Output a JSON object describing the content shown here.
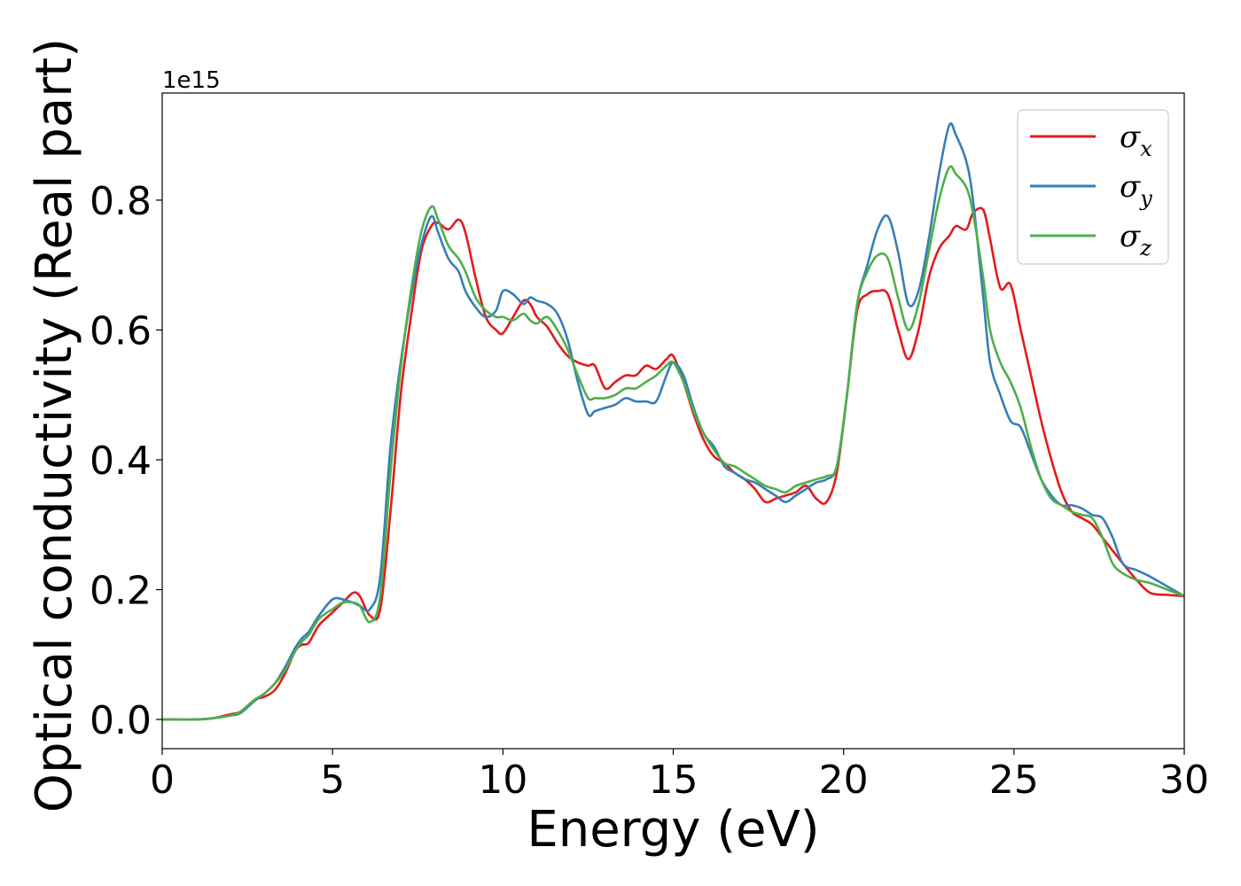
{
  "chart_data": {
    "type": "line",
    "xlabel": "Energy (eV)",
    "ylabel": "Optical conductivity (Real part)",
    "y_offset_label": "1e15",
    "xlim": [
      0,
      30
    ],
    "ylim": [
      -0.045,
      0.965
    ],
    "xticks": [
      0,
      5,
      10,
      15,
      20,
      25,
      30
    ],
    "xtick_labels": [
      "0",
      "5",
      "10",
      "15",
      "20",
      "25",
      "30"
    ],
    "yticks": [
      0.0,
      0.2,
      0.4,
      0.6,
      0.8
    ],
    "ytick_labels": [
      "0.0",
      "0.2",
      "0.4",
      "0.6",
      "0.8"
    ],
    "grid": false,
    "legend_position": "top-right",
    "series": [
      {
        "name": "σx",
        "legend_symbol": "σ",
        "legend_subscript": "x",
        "color": "#e41a1c",
        "x": [
          0,
          1,
          1.5,
          2,
          2.3,
          2.7,
          3,
          3.3,
          3.6,
          3.9,
          4.1,
          4.3,
          4.6,
          5,
          5.3,
          5.6,
          5.8,
          6.1,
          6.4,
          6.7,
          7,
          7.3,
          7.6,
          7.9,
          8.1,
          8.4,
          8.7,
          8.9,
          9.2,
          9.5,
          9.8,
          10,
          10.3,
          10.6,
          10.8,
          11,
          11.3,
          11.6,
          11.9,
          12.2,
          12.5,
          12.7,
          13,
          13.3,
          13.6,
          13.9,
          14.2,
          14.5,
          14.8,
          15,
          15.3,
          15.6,
          15.9,
          16.2,
          16.5,
          16.8,
          17.1,
          17.4,
          17.7,
          18,
          18.3,
          18.6,
          18.9,
          19.2,
          19.5,
          19.8,
          20.1,
          20.4,
          20.7,
          21,
          21.3,
          21.6,
          21.9,
          22.2,
          22.5,
          22.8,
          23.1,
          23.3,
          23.6,
          23.8,
          24.1,
          24.3,
          24.6,
          24.9,
          25.2,
          25.5,
          25.8,
          26.1,
          26.4,
          26.7,
          27,
          27.3,
          27.6,
          27.9,
          28.2,
          28.6,
          29,
          29.5,
          30
        ],
        "y": [
          0.0,
          0.0,
          0.002,
          0.008,
          0.012,
          0.03,
          0.035,
          0.045,
          0.07,
          0.105,
          0.115,
          0.118,
          0.145,
          0.165,
          0.18,
          0.195,
          0.19,
          0.16,
          0.17,
          0.32,
          0.5,
          0.62,
          0.72,
          0.76,
          0.765,
          0.755,
          0.77,
          0.75,
          0.68,
          0.62,
          0.6,
          0.595,
          0.62,
          0.645,
          0.64,
          0.62,
          0.605,
          0.58,
          0.56,
          0.55,
          0.545,
          0.545,
          0.51,
          0.52,
          0.53,
          0.53,
          0.545,
          0.54,
          0.555,
          0.56,
          0.52,
          0.47,
          0.43,
          0.405,
          0.395,
          0.38,
          0.37,
          0.355,
          0.335,
          0.34,
          0.345,
          0.35,
          0.36,
          0.34,
          0.335,
          0.38,
          0.5,
          0.63,
          0.655,
          0.66,
          0.655,
          0.6,
          0.555,
          0.6,
          0.68,
          0.725,
          0.745,
          0.76,
          0.755,
          0.78,
          0.785,
          0.74,
          0.665,
          0.67,
          0.6,
          0.53,
          0.46,
          0.4,
          0.35,
          0.32,
          0.31,
          0.3,
          0.28,
          0.26,
          0.24,
          0.215,
          0.195,
          0.192,
          0.19
        ]
      },
      {
        "name": "σy",
        "legend_symbol": "σ",
        "legend_subscript": "y",
        "color": "#377eb8",
        "x": [
          0,
          1,
          1.5,
          2,
          2.3,
          2.7,
          3,
          3.3,
          3.6,
          3.9,
          4.1,
          4.3,
          4.6,
          5,
          5.3,
          5.6,
          5.8,
          6.1,
          6.4,
          6.7,
          7,
          7.3,
          7.6,
          7.9,
          8.1,
          8.4,
          8.7,
          8.9,
          9.2,
          9.5,
          9.8,
          10,
          10.3,
          10.6,
          10.8,
          11,
          11.3,
          11.6,
          11.9,
          12.2,
          12.5,
          12.7,
          13,
          13.3,
          13.6,
          13.9,
          14.2,
          14.5,
          14.8,
          15,
          15.3,
          15.6,
          15.9,
          16.2,
          16.5,
          16.8,
          17.1,
          17.4,
          17.7,
          18,
          18.3,
          18.6,
          18.9,
          19.2,
          19.5,
          19.8,
          20.1,
          20.4,
          20.7,
          21,
          21.3,
          21.6,
          21.9,
          22.2,
          22.5,
          22.8,
          23.1,
          23.3,
          23.6,
          23.8,
          24.1,
          24.3,
          24.6,
          24.9,
          25.2,
          25.5,
          25.8,
          26.1,
          26.4,
          26.7,
          27,
          27.3,
          27.6,
          27.9,
          28.2,
          28.6,
          29,
          29.5,
          30
        ],
        "y": [
          0.0,
          0.0,
          0.002,
          0.006,
          0.01,
          0.028,
          0.04,
          0.055,
          0.08,
          0.11,
          0.125,
          0.135,
          0.16,
          0.185,
          0.185,
          0.18,
          0.175,
          0.17,
          0.22,
          0.42,
          0.55,
          0.65,
          0.73,
          0.775,
          0.75,
          0.71,
          0.69,
          0.66,
          0.635,
          0.62,
          0.63,
          0.66,
          0.655,
          0.64,
          0.65,
          0.645,
          0.64,
          0.625,
          0.585,
          0.52,
          0.47,
          0.475,
          0.48,
          0.485,
          0.495,
          0.49,
          0.49,
          0.49,
          0.53,
          0.55,
          0.53,
          0.48,
          0.44,
          0.42,
          0.39,
          0.38,
          0.37,
          0.365,
          0.355,
          0.345,
          0.335,
          0.345,
          0.355,
          0.365,
          0.37,
          0.39,
          0.5,
          0.64,
          0.7,
          0.755,
          0.775,
          0.72,
          0.64,
          0.66,
          0.74,
          0.84,
          0.915,
          0.9,
          0.86,
          0.8,
          0.65,
          0.55,
          0.5,
          0.46,
          0.45,
          0.41,
          0.37,
          0.345,
          0.33,
          0.33,
          0.325,
          0.315,
          0.31,
          0.28,
          0.24,
          0.23,
          0.22,
          0.205,
          0.19
        ]
      },
      {
        "name": "σz",
        "legend_symbol": "σ",
        "legend_subscript": "z",
        "color": "#4daf4a",
        "x": [
          0,
          1,
          1.5,
          2,
          2.3,
          2.7,
          3,
          3.3,
          3.6,
          3.9,
          4.1,
          4.3,
          4.6,
          5,
          5.3,
          5.6,
          5.8,
          6.1,
          6.4,
          6.7,
          7,
          7.3,
          7.6,
          7.9,
          8.1,
          8.4,
          8.7,
          8.9,
          9.2,
          9.5,
          9.8,
          10,
          10.3,
          10.6,
          10.8,
          11,
          11.3,
          11.6,
          11.9,
          12.2,
          12.5,
          12.7,
          13,
          13.3,
          13.6,
          13.9,
          14.2,
          14.5,
          14.8,
          15,
          15.3,
          15.6,
          15.9,
          16.2,
          16.5,
          16.8,
          17.1,
          17.4,
          17.7,
          18,
          18.3,
          18.6,
          18.9,
          19.2,
          19.5,
          19.8,
          20.1,
          20.4,
          20.7,
          21,
          21.3,
          21.6,
          21.9,
          22.2,
          22.5,
          22.8,
          23.1,
          23.3,
          23.6,
          23.8,
          24.1,
          24.3,
          24.6,
          24.9,
          25.2,
          25.5,
          25.8,
          26.1,
          26.4,
          26.7,
          27,
          27.3,
          27.6,
          27.9,
          28.2,
          28.6,
          29,
          29.5,
          30
        ],
        "y": [
          0.0,
          0.0,
          0.002,
          0.006,
          0.012,
          0.03,
          0.04,
          0.055,
          0.075,
          0.105,
          0.12,
          0.13,
          0.155,
          0.17,
          0.18,
          0.18,
          0.175,
          0.15,
          0.19,
          0.38,
          0.54,
          0.66,
          0.75,
          0.79,
          0.77,
          0.73,
          0.71,
          0.69,
          0.65,
          0.63,
          0.62,
          0.62,
          0.615,
          0.625,
          0.615,
          0.61,
          0.62,
          0.6,
          0.57,
          0.53,
          0.495,
          0.495,
          0.495,
          0.5,
          0.51,
          0.51,
          0.52,
          0.53,
          0.545,
          0.55,
          0.52,
          0.475,
          0.44,
          0.415,
          0.395,
          0.39,
          0.38,
          0.37,
          0.36,
          0.355,
          0.35,
          0.36,
          0.365,
          0.37,
          0.375,
          0.39,
          0.5,
          0.64,
          0.69,
          0.715,
          0.71,
          0.65,
          0.6,
          0.64,
          0.72,
          0.8,
          0.85,
          0.84,
          0.82,
          0.78,
          0.68,
          0.6,
          0.55,
          0.52,
          0.48,
          0.42,
          0.37,
          0.34,
          0.33,
          0.32,
          0.315,
          0.31,
          0.28,
          0.24,
          0.225,
          0.215,
          0.21,
          0.2,
          0.19
        ]
      }
    ]
  }
}
